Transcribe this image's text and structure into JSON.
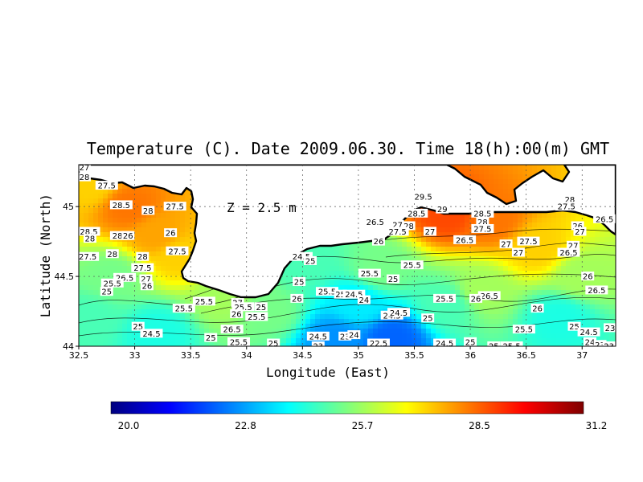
{
  "chart_data": {
    "type": "heatmap",
    "title": "Temperature (C). Date 2009.06.30. Time 18(h):00(m) GMT",
    "xlabel": "Longitude (East)",
    "ylabel": "Latitude (North)",
    "annotation": "Z = 2.5 m",
    "xlim": [
      32.5,
      37.3
    ],
    "ylim": [
      44.0,
      45.3
    ],
    "x_ticks": [
      {
        "value": 32.5,
        "label": "32.5"
      },
      {
        "value": 33,
        "label": "33"
      },
      {
        "value": 33.5,
        "label": "33.5"
      },
      {
        "value": 34,
        "label": "34"
      },
      {
        "value": 34.5,
        "label": "34.5"
      },
      {
        "value": 35,
        "label": "35"
      },
      {
        "value": 35.5,
        "label": "35.5"
      },
      {
        "value": 36,
        "label": "36"
      },
      {
        "value": 36.5,
        "label": "36.5"
      },
      {
        "value": 37,
        "label": "37"
      }
    ],
    "y_ticks": [
      {
        "value": 44,
        "label": "44"
      },
      {
        "value": 44.5,
        "label": "44.5"
      },
      {
        "value": 45,
        "label": "45"
      }
    ],
    "grid": true,
    "colorbar": {
      "min": 20.0,
      "max": 31.2,
      "ticks": [
        "20.0",
        "22.8",
        "25.7",
        "28.5",
        "31.2"
      ],
      "colormap": [
        "#00007f",
        "#0000ff",
        "#007fff",
        "#00ffff",
        "#7fff7f",
        "#ffff00",
        "#ff7f00",
        "#ff0000",
        "#7f0000"
      ]
    },
    "field_samples": [
      {
        "lon": 32.6,
        "lat": 45.15,
        "value": 27.5
      },
      {
        "lon": 32.95,
        "lat": 45.0,
        "value": 28.5
      },
      {
        "lon": 33.2,
        "lat": 44.8,
        "value": 28
      },
      {
        "lon": 33.4,
        "lat": 44.65,
        "value": 27.5
      },
      {
        "lon": 32.8,
        "lat": 44.5,
        "value": 25.5
      },
      {
        "lon": 32.6,
        "lat": 44.2,
        "value": 25
      },
      {
        "lon": 33.2,
        "lat": 44.1,
        "value": 24.5
      },
      {
        "lon": 33.8,
        "lat": 44.35,
        "value": 26
      },
      {
        "lon": 34.2,
        "lat": 44.25,
        "value": 25.5
      },
      {
        "lon": 34.8,
        "lat": 44.05,
        "value": 23
      },
      {
        "lon": 35.0,
        "lat": 44.3,
        "value": 24
      },
      {
        "lon": 35.2,
        "lat": 44.55,
        "value": 25.5
      },
      {
        "lon": 35.8,
        "lat": 44.95,
        "value": 29
      },
      {
        "lon": 36.2,
        "lat": 44.9,
        "value": 28.5
      },
      {
        "lon": 36.6,
        "lat": 44.7,
        "value": 27.5
      },
      {
        "lon": 36.1,
        "lat": 44.4,
        "value": 26
      },
      {
        "lon": 37.0,
        "lat": 44.5,
        "value": 26
      },
      {
        "lon": 36.8,
        "lat": 44.2,
        "value": 24.5
      },
      {
        "lon": 35.3,
        "lat": 44.05,
        "value": 22.5
      },
      {
        "lon": 34.5,
        "lat": 44.6,
        "value": 25
      },
      {
        "lon": 35.8,
        "lat": 44.3,
        "value": 25
      }
    ],
    "contour_labels": [
      {
        "lon": 32.55,
        "lat": 45.28,
        "text": "27"
      },
      {
        "lon": 32.55,
        "lat": 45.21,
        "text": "28"
      },
      {
        "lon": 32.75,
        "lat": 45.15,
        "text": "27.5"
      },
      {
        "lon": 32.88,
        "lat": 45.01,
        "text": "28.5"
      },
      {
        "lon": 33.12,
        "lat": 44.97,
        "text": "28"
      },
      {
        "lon": 33.36,
        "lat": 45.0,
        "text": "27.5"
      },
      {
        "lon": 32.59,
        "lat": 44.82,
        "text": "28.5"
      },
      {
        "lon": 32.6,
        "lat": 44.77,
        "text": "28"
      },
      {
        "lon": 32.88,
        "lat": 44.79,
        "text": "28.5"
      },
      {
        "lon": 32.94,
        "lat": 44.79,
        "text": "26"
      },
      {
        "lon": 33.32,
        "lat": 44.81,
        "text": "26"
      },
      {
        "lon": 32.8,
        "lat": 44.66,
        "text": "28"
      },
      {
        "lon": 32.58,
        "lat": 44.64,
        "text": "27.5"
      },
      {
        "lon": 33.07,
        "lat": 44.64,
        "text": "28"
      },
      {
        "lon": 33.07,
        "lat": 44.56,
        "text": "27.5"
      },
      {
        "lon": 33.38,
        "lat": 44.68,
        "text": "27.5"
      },
      {
        "lon": 32.91,
        "lat": 44.49,
        "text": "26.5"
      },
      {
        "lon": 33.1,
        "lat": 44.48,
        "text": "27"
      },
      {
        "lon": 32.8,
        "lat": 44.45,
        "text": "25.5"
      },
      {
        "lon": 33.11,
        "lat": 44.43,
        "text": "26"
      },
      {
        "lon": 32.75,
        "lat": 44.39,
        "text": "25"
      },
      {
        "lon": 33.62,
        "lat": 44.32,
        "text": "25.5"
      },
      {
        "lon": 33.44,
        "lat": 44.27,
        "text": "25.5"
      },
      {
        "lon": 33.92,
        "lat": 44.31,
        "text": "27"
      },
      {
        "lon": 33.97,
        "lat": 44.28,
        "text": "25.5"
      },
      {
        "lon": 33.91,
        "lat": 44.23,
        "text": "26"
      },
      {
        "lon": 34.13,
        "lat": 44.28,
        "text": "25"
      },
      {
        "lon": 34.09,
        "lat": 44.21,
        "text": "25.5"
      },
      {
        "lon": 33.87,
        "lat": 44.12,
        "text": "26.5"
      },
      {
        "lon": 33.03,
        "lat": 44.14,
        "text": "25"
      },
      {
        "lon": 33.15,
        "lat": 44.09,
        "text": "24.5"
      },
      {
        "lon": 33.68,
        "lat": 44.06,
        "text": "25"
      },
      {
        "lon": 33.93,
        "lat": 44.03,
        "text": "25.5"
      },
      {
        "lon": 34.24,
        "lat": 44.02,
        "text": "25"
      },
      {
        "lon": 34.49,
        "lat": 44.64,
        "text": "24.5"
      },
      {
        "lon": 34.57,
        "lat": 44.61,
        "text": "25"
      },
      {
        "lon": 34.47,
        "lat": 44.46,
        "text": "25"
      },
      {
        "lon": 34.45,
        "lat": 44.34,
        "text": "26"
      },
      {
        "lon": 34.72,
        "lat": 44.39,
        "text": "25.5"
      },
      {
        "lon": 34.84,
        "lat": 44.37,
        "text": "25"
      },
      {
        "lon": 34.96,
        "lat": 44.37,
        "text": "24.5"
      },
      {
        "lon": 35.05,
        "lat": 44.33,
        "text": "24"
      },
      {
        "lon": 35.1,
        "lat": 44.52,
        "text": "25.5"
      },
      {
        "lon": 35.31,
        "lat": 44.48,
        "text": "25"
      },
      {
        "lon": 35.48,
        "lat": 44.58,
        "text": "25.5"
      },
      {
        "lon": 35.3,
        "lat": 44.22,
        "text": "24.5"
      },
      {
        "lon": 35.62,
        "lat": 44.2,
        "text": "25"
      },
      {
        "lon": 34.64,
        "lat": 44.07,
        "text": "24.5"
      },
      {
        "lon": 34.88,
        "lat": 44.07,
        "text": "23"
      },
      {
        "lon": 34.96,
        "lat": 44.08,
        "text": "24"
      },
      {
        "lon": 34.64,
        "lat": 44.0,
        "text": "23"
      },
      {
        "lon": 35.18,
        "lat": 44.02,
        "text": "22.5"
      },
      {
        "lon": 35.77,
        "lat": 44.02,
        "text": "24.5"
      },
      {
        "lon": 36.0,
        "lat": 44.03,
        "text": "25"
      },
      {
        "lon": 35.58,
        "lat": 45.07,
        "text": "29.5"
      },
      {
        "lon": 35.52,
        "lat": 44.95,
        "text": "28.5"
      },
      {
        "lon": 35.75,
        "lat": 44.98,
        "text": "29"
      },
      {
        "lon": 35.15,
        "lat": 44.89,
        "text": "26.5"
      },
      {
        "lon": 35.35,
        "lat": 44.87,
        "text": "27"
      },
      {
        "lon": 35.45,
        "lat": 44.86,
        "text": "28"
      },
      {
        "lon": 35.35,
        "lat": 44.82,
        "text": "27.5"
      },
      {
        "lon": 35.64,
        "lat": 44.82,
        "text": "27"
      },
      {
        "lon": 35.18,
        "lat": 44.75,
        "text": "26"
      },
      {
        "lon": 35.95,
        "lat": 44.76,
        "text": "26.5"
      },
      {
        "lon": 36.11,
        "lat": 44.95,
        "text": "28.5"
      },
      {
        "lon": 36.11,
        "lat": 44.89,
        "text": "28"
      },
      {
        "lon": 36.11,
        "lat": 44.84,
        "text": "27.5"
      },
      {
        "lon": 36.32,
        "lat": 44.73,
        "text": "27"
      },
      {
        "lon": 36.52,
        "lat": 44.75,
        "text": "27.5"
      },
      {
        "lon": 36.43,
        "lat": 44.67,
        "text": "27"
      },
      {
        "lon": 36.89,
        "lat": 45.05,
        "text": "28"
      },
      {
        "lon": 36.86,
        "lat": 45.0,
        "text": "27.5"
      },
      {
        "lon": 36.96,
        "lat": 44.86,
        "text": "26"
      },
      {
        "lon": 37.2,
        "lat": 44.91,
        "text": "26.5"
      },
      {
        "lon": 36.98,
        "lat": 44.82,
        "text": "27"
      },
      {
        "lon": 36.92,
        "lat": 44.72,
        "text": "27"
      },
      {
        "lon": 36.88,
        "lat": 44.67,
        "text": "26.5"
      },
      {
        "lon": 37.05,
        "lat": 44.5,
        "text": "26"
      },
      {
        "lon": 37.13,
        "lat": 44.4,
        "text": "26.5"
      },
      {
        "lon": 36.17,
        "lat": 44.36,
        "text": "26.5"
      },
      {
        "lon": 36.05,
        "lat": 44.34,
        "text": "26"
      },
      {
        "lon": 35.77,
        "lat": 44.34,
        "text": "25.5"
      },
      {
        "lon": 36.6,
        "lat": 44.27,
        "text": "26"
      },
      {
        "lon": 36.48,
        "lat": 44.12,
        "text": "25.5"
      },
      {
        "lon": 36.93,
        "lat": 44.14,
        "text": "25"
      },
      {
        "lon": 37.06,
        "lat": 44.1,
        "text": "24.5"
      },
      {
        "lon": 37.25,
        "lat": 44.13,
        "text": "23"
      },
      {
        "lon": 37.07,
        "lat": 44.03,
        "text": "24"
      },
      {
        "lon": 37.16,
        "lat": 44.01,
        "text": "23"
      },
      {
        "lon": 37.24,
        "lat": 44.0,
        "text": "23"
      },
      {
        "lon": 35.36,
        "lat": 44.24,
        "text": "24.5"
      },
      {
        "lon": 36.21,
        "lat": 44.0,
        "text": "25"
      },
      {
        "lon": 36.37,
        "lat": 44.0,
        "text": "25.5"
      }
    ]
  }
}
